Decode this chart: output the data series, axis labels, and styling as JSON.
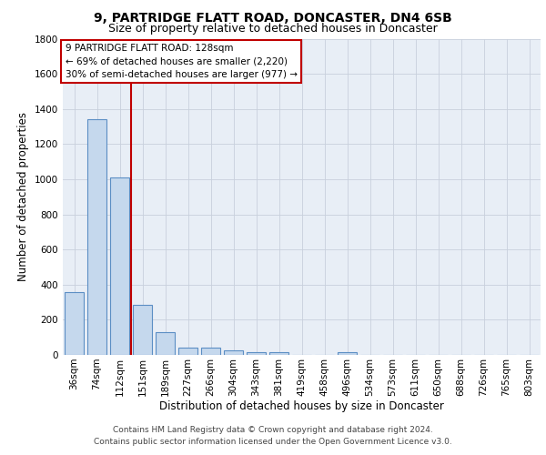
{
  "title1": "9, PARTRIDGE FLATT ROAD, DONCASTER, DN4 6SB",
  "title2": "Size of property relative to detached houses in Doncaster",
  "xlabel": "Distribution of detached houses by size in Doncaster",
  "ylabel": "Number of detached properties",
  "categories": [
    "36sqm",
    "74sqm",
    "112sqm",
    "151sqm",
    "189sqm",
    "227sqm",
    "266sqm",
    "304sqm",
    "343sqm",
    "381sqm",
    "419sqm",
    "458sqm",
    "496sqm",
    "534sqm",
    "573sqm",
    "611sqm",
    "650sqm",
    "688sqm",
    "726sqm",
    "765sqm",
    "803sqm"
  ],
  "values": [
    355,
    1340,
    1010,
    285,
    130,
    40,
    40,
    25,
    18,
    15,
    0,
    0,
    18,
    0,
    0,
    0,
    0,
    0,
    0,
    0,
    0
  ],
  "bar_color": "#c5d8ed",
  "bar_edge_color": "#5b8ec4",
  "property_line_color": "#c00000",
  "annotation_text": "9 PARTRIDGE FLATT ROAD: 128sqm\n← 69% of detached houses are smaller (2,220)\n30% of semi-detached houses are larger (977) →",
  "annotation_box_color": "#ffffff",
  "annotation_box_edge_color": "#c00000",
  "ylim": [
    0,
    1800
  ],
  "yticks": [
    0,
    200,
    400,
    600,
    800,
    1000,
    1200,
    1400,
    1600,
    1800
  ],
  "bg_color": "#e8eef6",
  "footer_line1": "Contains HM Land Registry data © Crown copyright and database right 2024.",
  "footer_line2": "Contains public sector information licensed under the Open Government Licence v3.0.",
  "title1_fontsize": 10,
  "title2_fontsize": 9,
  "xlabel_fontsize": 8.5,
  "ylabel_fontsize": 8.5,
  "tick_fontsize": 7.5,
  "annotation_fontsize": 7.5,
  "footer_fontsize": 6.5
}
